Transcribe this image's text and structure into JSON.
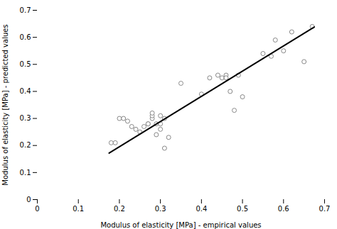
{
  "chart_data": {
    "type": "scatter",
    "xlabel": "Modulus of elasticity [MPa] - empirical values",
    "ylabel": "Modulus of elasticity [MPa] - predicted values",
    "series": [
      {
        "type": "scatter",
        "marker": "open_circle",
        "color": "#888888",
        "x": [
          0.18,
          0.19,
          0.2,
          0.21,
          0.22,
          0.23,
          0.24,
          0.25,
          0.26,
          0.27,
          0.27,
          0.28,
          0.28,
          0.28,
          0.29,
          0.29,
          0.3,
          0.3,
          0.3,
          0.31,
          0.31,
          0.32,
          0.35,
          0.4,
          0.42,
          0.44,
          0.45,
          0.46,
          0.46,
          0.47,
          0.48,
          0.49,
          0.5,
          0.55,
          0.57,
          0.58,
          0.6,
          0.62,
          0.65,
          0.67
        ],
        "values": [
          0.21,
          0.21,
          0.3,
          0.3,
          0.29,
          0.27,
          0.26,
          0.25,
          0.27,
          0.28,
          0.28,
          0.3,
          0.31,
          0.32,
          0.24,
          0.28,
          0.26,
          0.28,
          0.31,
          0.19,
          0.3,
          0.23,
          0.43,
          0.39,
          0.45,
          0.46,
          0.45,
          0.46,
          0.45,
          0.4,
          0.33,
          0.46,
          0.38,
          0.54,
          0.53,
          0.59,
          0.55,
          0.62,
          0.51,
          0.64
        ]
      },
      {
        "type": "line",
        "line_style": "solid",
        "color": "black",
        "x": [
          0.175,
          0.675
        ],
        "values": [
          0.172,
          0.638
        ]
      }
    ],
    "xlim": [
      0.0,
      0.7
    ],
    "ylim": [
      0.0,
      0.7
    ],
    "xticks": [
      0.0,
      0.1,
      0.2,
      0.3,
      0.4,
      0.5,
      0.6,
      0.7
    ],
    "yticks": [
      0.0,
      0.1,
      0.2,
      0.3,
      0.4,
      0.5,
      0.6,
      0.7
    ],
    "grid": false
  }
}
